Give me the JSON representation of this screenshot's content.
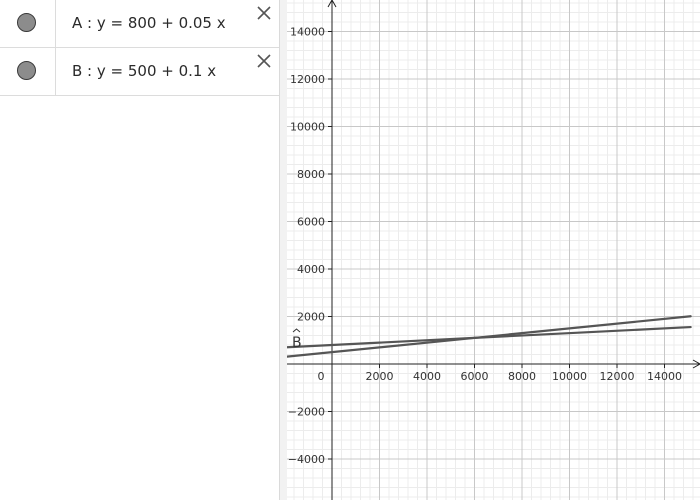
{
  "algebra": {
    "items": [
      {
        "name": "A",
        "formula": "A :  y = 800 + 0.05 x",
        "intercept": 800,
        "slope": 0.05
      },
      {
        "name": "B",
        "formula": "B :  y = 500 + 0.1 x",
        "intercept": 500,
        "slope": 0.1
      }
    ],
    "delete_icon": "close-icon",
    "toggle_icon": "visibility-marble"
  },
  "graphics": {
    "line_label": "B",
    "line_color": "#555555",
    "grid": true
  },
  "chart_data": {
    "type": "line",
    "title": "",
    "xlabel": "",
    "ylabel": "",
    "xlim": [
      -1900,
      15100
    ],
    "ylim": [
      -5700,
      15100
    ],
    "x_ticks": [
      "0",
      "2000",
      "4000",
      "6000",
      "8000",
      "10000",
      "12000",
      "14000"
    ],
    "y_ticks": [
      "14000",
      "12000",
      "10000",
      "8000",
      "6000",
      "4000",
      "2000",
      "−2000",
      "−4000"
    ],
    "series": [
      {
        "name": "A",
        "intercept": 800,
        "slope": 0.05
      },
      {
        "name": "B",
        "intercept": 500,
        "slope": 0.1
      }
    ],
    "grid": true
  }
}
